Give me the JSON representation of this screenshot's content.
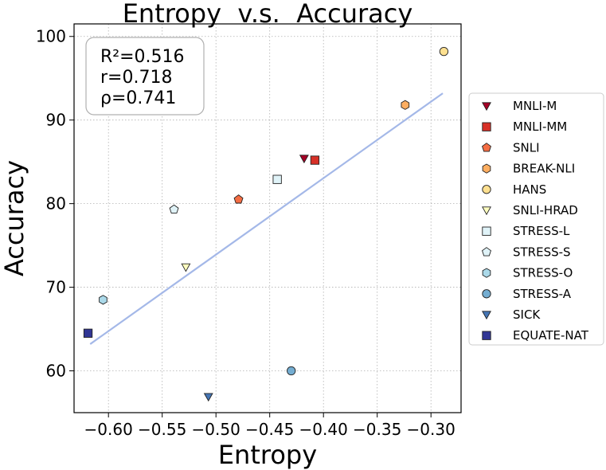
{
  "chart_data": {
    "type": "scatter",
    "title": "Entropy  v.s.  Accuracy",
    "xlabel": "Entropy",
    "ylabel": "Accuracy",
    "xlim": [
      -0.632,
      -0.272
    ],
    "ylim": [
      55.0,
      101.5
    ],
    "xticks": [
      -0.6,
      -0.55,
      -0.5,
      -0.45,
      -0.4,
      -0.35,
      -0.3
    ],
    "xtick_labels": [
      "−0.60",
      "−0.55",
      "−0.50",
      "−0.45",
      "−0.40",
      "−0.35",
      "−0.30"
    ],
    "yticks": [
      60,
      70,
      80,
      90,
      100
    ],
    "ytick_labels": [
      "60",
      "70",
      "80",
      "90",
      "100"
    ],
    "grid": true,
    "legend_position": "right, outside",
    "stats": [
      "R²=0.516",
      "r=0.718",
      "ρ=0.741"
    ],
    "fit_line": {
      "x": [
        -0.617,
        -0.289
      ],
      "y": [
        63.2,
        93.2
      ],
      "color": "#a4b8e8"
    },
    "series": [
      {
        "name": "MNLI-M",
        "x": -0.418,
        "y": 85.4,
        "marker": "triangle-down",
        "color": "#a50026"
      },
      {
        "name": "MNLI-MM",
        "x": -0.408,
        "y": 85.2,
        "marker": "square",
        "color": "#d73027"
      },
      {
        "name": "SNLI",
        "x": -0.479,
        "y": 80.5,
        "marker": "pentagon",
        "color": "#f46d43"
      },
      {
        "name": "BREAK-NLI",
        "x": -0.324,
        "y": 91.8,
        "marker": "hexagon",
        "color": "#fdae61"
      },
      {
        "name": "HANS",
        "x": -0.288,
        "y": 98.2,
        "marker": "circle",
        "color": "#fee090"
      },
      {
        "name": "SNLI-HRAD",
        "x": -0.528,
        "y": 72.4,
        "marker": "triangle-down",
        "color": "#ffffbf"
      },
      {
        "name": "STRESS-L",
        "x": -0.443,
        "y": 82.9,
        "marker": "square",
        "color": "#e0f3f8"
      },
      {
        "name": "STRESS-S",
        "x": -0.539,
        "y": 79.3,
        "marker": "pentagon",
        "color": "#e0f3f8"
      },
      {
        "name": "STRESS-O",
        "x": -0.605,
        "y": 68.5,
        "marker": "hexagon",
        "color": "#abd9e9"
      },
      {
        "name": "STRESS-A",
        "x": -0.43,
        "y": 60.0,
        "marker": "circle",
        "color": "#74add1"
      },
      {
        "name": "SICK",
        "x": -0.507,
        "y": 56.9,
        "marker": "triangle-down",
        "color": "#4575b4"
      },
      {
        "name": "EQUATE-NAT",
        "x": -0.619,
        "y": 64.5,
        "marker": "square",
        "color": "#313695"
      }
    ]
  }
}
